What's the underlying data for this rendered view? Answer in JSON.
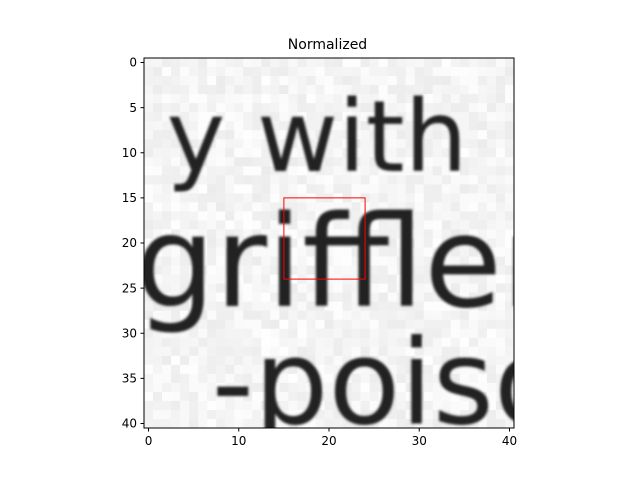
{
  "chart_data": {
    "type": "heatmap",
    "title": "Normalized",
    "colormap": "gray_r",
    "image_rows": 41,
    "image_cols": 41,
    "xlim": [
      -0.5,
      40.5
    ],
    "ylim": [
      40.5,
      -0.5
    ],
    "x_ticks": [
      0,
      10,
      20,
      30,
      40
    ],
    "y_ticks": [
      0,
      5,
      10,
      15,
      20,
      25,
      30,
      35,
      40
    ],
    "rendered_text_lines": [
      {
        "text": "y with",
        "row_start": 4,
        "row_end": 12
      },
      {
        "text": "grifflers",
        "row_start": 16,
        "row_end": 27
      },
      {
        "text": "-poison",
        "row_start": 30,
        "row_end": 40
      }
    ],
    "highlight_box": {
      "x0": 15,
      "y0": 15,
      "x1": 24,
      "y1": 24,
      "color": "#ff0000"
    }
  }
}
